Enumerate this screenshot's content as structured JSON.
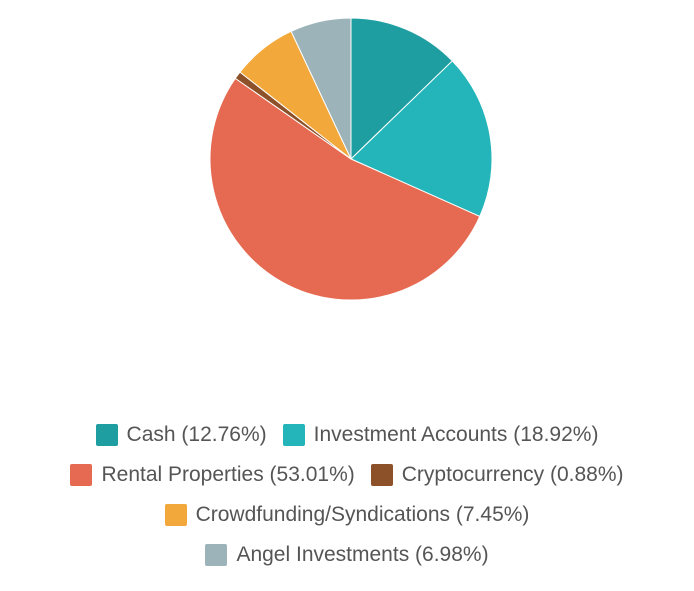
{
  "chart_data": {
    "type": "pie",
    "title": "",
    "legend_position": "bottom",
    "slices": [
      {
        "label": "Cash",
        "value": 12.76,
        "display": "Cash (12.76%)",
        "color": "#1f9ea2"
      },
      {
        "label": "Investment Accounts",
        "value": 18.92,
        "display": "Investment Accounts (18.92%)",
        "color": "#23b5b9"
      },
      {
        "label": "Rental Properties",
        "value": 53.01,
        "display": "Rental Properties (53.01%)",
        "color": "#e66a51"
      },
      {
        "label": "Cryptocurrency",
        "value": 0.88,
        "display": "Cryptocurrency (0.88%)",
        "color": "#8c5128"
      },
      {
        "label": "Crowdfunding/Syndications",
        "value": 7.45,
        "display": "Crowdfunding/Syndications (7.45%)",
        "color": "#f3a83b"
      },
      {
        "label": "Angel Investments",
        "value": 6.98,
        "display": "Angel Investments (6.98%)",
        "color": "#9cb3b9"
      }
    ]
  }
}
